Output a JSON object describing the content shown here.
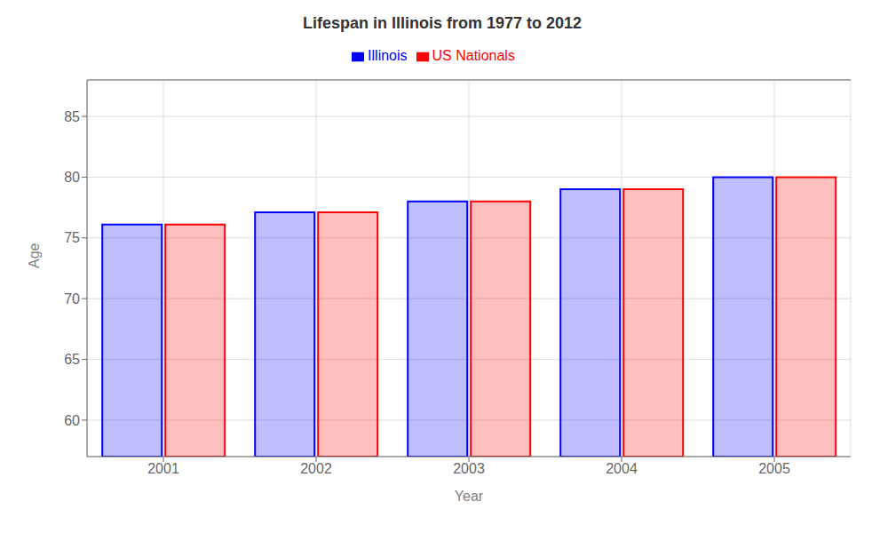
{
  "chart_data": {
    "type": "bar",
    "title": "Lifespan in Illinois from 1977 to 2012",
    "x_label": "Year",
    "y_label": "Age",
    "categories": [
      "2001",
      "2002",
      "2003",
      "2004",
      "2005"
    ],
    "series": [
      {
        "name": "Illinois",
        "color": "#0000ff",
        "values": [
          76.1,
          77.1,
          78.0,
          79.0,
          80.0
        ]
      },
      {
        "name": "US Nationals",
        "color": "#ff0000",
        "values": [
          76.1,
          77.1,
          78.0,
          79.0,
          80.0
        ]
      }
    ],
    "ylim": [
      57,
      88
    ],
    "yticks": [
      60,
      65,
      70,
      75,
      80,
      85
    ],
    "grid": true,
    "legend": "top"
  }
}
